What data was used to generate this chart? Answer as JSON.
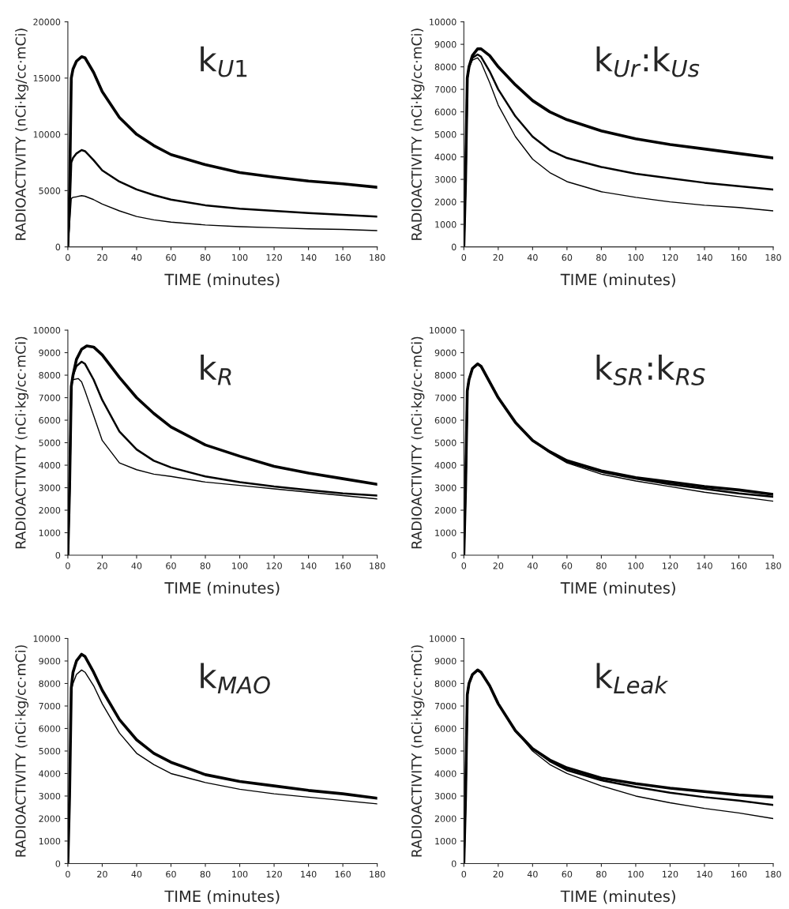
{
  "chart_data": [
    {
      "type": "line",
      "title": "k$_{U1}$",
      "xlabel": "TIME (minutes)",
      "ylabel": "RADIOACTIVITY (nCi·kg/cc·mCi)",
      "x": [
        0,
        1,
        2,
        3,
        5,
        8,
        10,
        15,
        20,
        30,
        40,
        50,
        60,
        80,
        100,
        120,
        140,
        160,
        180
      ],
      "xlim": [
        0,
        180
      ],
      "xticks": [
        0,
        20,
        40,
        60,
        80,
        100,
        120,
        140,
        160,
        180
      ],
      "ylim": [
        0,
        20000
      ],
      "yticks": [
        0,
        5000,
        10000,
        15000,
        20000
      ],
      "grid": false,
      "legend": false,
      "line_style": "solid",
      "series": [
        {
          "color": "#000000",
          "values": [
            0,
            5000,
            15000,
            15800,
            16500,
            16900,
            16800,
            15500,
            13800,
            11500,
            10000,
            9000,
            8200,
            7300,
            6600,
            6200,
            5850,
            5600,
            5300
          ]
        },
        {
          "color": "#000000",
          "values": [
            0,
            3000,
            7500,
            7900,
            8300,
            8600,
            8500,
            7700,
            6800,
            5800,
            5100,
            4600,
            4200,
            3700,
            3400,
            3200,
            3000,
            2850,
            2700
          ]
        },
        {
          "color": "#000000",
          "values": [
            0,
            2000,
            4300,
            4400,
            4450,
            4550,
            4500,
            4200,
            3800,
            3200,
            2700,
            2400,
            2200,
            1950,
            1800,
            1700,
            1600,
            1550,
            1450
          ]
        }
      ]
    },
    {
      "type": "line",
      "title": "k$_{Ur}$:k$_{Us}$",
      "xlabel": "TIME (minutes)",
      "ylabel": "RADIOACTIVITY (nCi·kg/cc·mCi)",
      "x": [
        0,
        1,
        2,
        3,
        5,
        8,
        10,
        15,
        20,
        30,
        40,
        50,
        60,
        80,
        100,
        120,
        140,
        160,
        180
      ],
      "xlim": [
        0,
        180
      ],
      "xticks": [
        0,
        20,
        40,
        60,
        80,
        100,
        120,
        140,
        160,
        180
      ],
      "ylim": [
        0,
        10000
      ],
      "yticks": [
        0,
        1000,
        2000,
        3000,
        4000,
        5000,
        6000,
        7000,
        8000,
        9000,
        10000
      ],
      "grid": false,
      "legend": false,
      "line_style": "solid",
      "series": [
        {
          "color": "#000000",
          "values": [
            0,
            3000,
            7500,
            8000,
            8500,
            8800,
            8800,
            8500,
            8000,
            7200,
            6500,
            6000,
            5650,
            5150,
            4800,
            4550,
            4350,
            4150,
            3950
          ]
        },
        {
          "color": "#000000",
          "values": [
            0,
            3000,
            7500,
            8000,
            8400,
            8550,
            8450,
            7800,
            7000,
            5800,
            4900,
            4300,
            3950,
            3550,
            3250,
            3050,
            2850,
            2700,
            2550
          ]
        },
        {
          "color": "#000000",
          "values": [
            0,
            3000,
            7500,
            8000,
            8300,
            8400,
            8200,
            7300,
            6300,
            4900,
            3900,
            3300,
            2900,
            2450,
            2200,
            2000,
            1850,
            1750,
            1600
          ]
        }
      ]
    },
    {
      "type": "line",
      "title": "k$_{R}$",
      "xlabel": "TIME (minutes)",
      "ylabel": "RADIOACTIVITY (nCi·kg/cc·mCi)",
      "x": [
        0,
        1,
        2,
        3,
        5,
        8,
        11,
        15,
        20,
        30,
        40,
        50,
        60,
        80,
        100,
        120,
        140,
        160,
        180
      ],
      "xlim": [
        0,
        180
      ],
      "xticks": [
        0,
        20,
        40,
        60,
        80,
        100,
        120,
        140,
        160,
        180
      ],
      "ylim": [
        0,
        10000
      ],
      "yticks": [
        0,
        1000,
        2000,
        3000,
        4000,
        5000,
        6000,
        7000,
        8000,
        9000,
        10000
      ],
      "grid": false,
      "legend": false,
      "line_style": "solid",
      "series": [
        {
          "color": "#000000",
          "values": [
            0,
            3000,
            7500,
            8000,
            8700,
            9150,
            9300,
            9250,
            8900,
            7900,
            7000,
            6300,
            5700,
            4900,
            4400,
            3950,
            3650,
            3400,
            3150
          ]
        },
        {
          "color": "#000000",
          "x": [
            0,
            1,
            2,
            3,
            5,
            8,
            10,
            15,
            20,
            30,
            40,
            50,
            60,
            80,
            100,
            120,
            140,
            160,
            180
          ],
          "values": [
            0,
            3000,
            7500,
            8000,
            8400,
            8600,
            8500,
            7800,
            6900,
            5500,
            4700,
            4200,
            3900,
            3500,
            3250,
            3050,
            2900,
            2750,
            2650
          ]
        },
        {
          "color": "#000000",
          "x": [
            0,
            1,
            2,
            3,
            6,
            8,
            10,
            15,
            20,
            30,
            40,
            50,
            60,
            80,
            100,
            120,
            140,
            160,
            180
          ],
          "values": [
            0,
            3000,
            7500,
            7800,
            7850,
            7700,
            7300,
            6200,
            5100,
            4100,
            3800,
            3600,
            3500,
            3250,
            3100,
            2950,
            2800,
            2650,
            2500
          ]
        }
      ]
    },
    {
      "type": "line",
      "title": "k$_{SR}$:k$_{RS}$",
      "xlabel": "TIME (minutes)",
      "ylabel": "RADIOACTIVITY (nCi·kg/cc·mCi)",
      "x": [
        0,
        1,
        2,
        3,
        5,
        8,
        10,
        15,
        20,
        30,
        40,
        50,
        60,
        80,
        100,
        120,
        140,
        160,
        180
      ],
      "xlim": [
        0,
        180
      ],
      "xticks": [
        0,
        20,
        40,
        60,
        80,
        100,
        120,
        140,
        160,
        180
      ],
      "ylim": [
        0,
        10000
      ],
      "yticks": [
        0,
        1000,
        2000,
        3000,
        4000,
        5000,
        6000,
        7000,
        8000,
        9000,
        10000
      ],
      "grid": false,
      "legend": false,
      "line_style": "solid",
      "series": [
        {
          "color": "#000000",
          "values": [
            0,
            3000,
            7300,
            7800,
            8300,
            8500,
            8400,
            7700,
            7000,
            5900,
            5100,
            4600,
            4200,
            3750,
            3450,
            3250,
            3050,
            2900,
            2700
          ]
        },
        {
          "color": "#000000",
          "values": [
            0,
            3000,
            7300,
            7800,
            8300,
            8500,
            8400,
            7700,
            7000,
            5900,
            5100,
            4600,
            4150,
            3700,
            3400,
            3150,
            2950,
            2750,
            2600
          ]
        },
        {
          "color": "#000000",
          "values": [
            0,
            3000,
            7300,
            7800,
            8300,
            8500,
            8400,
            7700,
            7000,
            5900,
            5100,
            4550,
            4100,
            3600,
            3300,
            3050,
            2800,
            2600,
            2400
          ]
        }
      ]
    },
    {
      "type": "line",
      "title": "k$_{MAO}$",
      "xlabel": "TIME (minutes)",
      "ylabel": "RADIOACTIVITY (nCi·kg/cc·mCi)",
      "x": [
        0,
        1,
        2,
        3,
        5,
        8,
        10,
        15,
        20,
        30,
        40,
        50,
        60,
        80,
        100,
        120,
        140,
        160,
        180
      ],
      "xlim": [
        0,
        180
      ],
      "xticks": [
        0,
        20,
        40,
        60,
        80,
        100,
        120,
        140,
        160,
        180
      ],
      "ylim": [
        0,
        10000
      ],
      "yticks": [
        0,
        1000,
        2000,
        3000,
        4000,
        5000,
        6000,
        7000,
        8000,
        9000,
        10000
      ],
      "grid": false,
      "legend": false,
      "line_style": "solid",
      "series": [
        {
          "color": "#000000",
          "values": [
            0,
            3000,
            7800,
            8500,
            9000,
            9300,
            9200,
            8500,
            7700,
            6400,
            5500,
            4900,
            4500,
            3950,
            3650,
            3450,
            3250,
            3100,
            2900
          ]
        },
        {
          "color": "#000000",
          "values": [
            0,
            3000,
            7700,
            8000,
            8400,
            8600,
            8500,
            7900,
            7100,
            5800,
            4900,
            4400,
            4000,
            3600,
            3300,
            3100,
            2950,
            2800,
            2650
          ]
        }
      ]
    },
    {
      "type": "line",
      "title": "k$_{Leak}$",
      "xlabel": "TIME (minutes)",
      "ylabel": "RADIOACTIVITY (nCi·kg/cc·mCi)",
      "x": [
        0,
        1,
        2,
        3,
        5,
        8,
        10,
        15,
        20,
        30,
        40,
        50,
        60,
        80,
        100,
        120,
        140,
        160,
        180
      ],
      "xlim": [
        0,
        180
      ],
      "xticks": [
        0,
        20,
        40,
        60,
        80,
        100,
        120,
        140,
        160,
        180
      ],
      "ylim": [
        0,
        10000
      ],
      "yticks": [
        0,
        1000,
        2000,
        3000,
        4000,
        5000,
        6000,
        7000,
        8000,
        9000,
        10000
      ],
      "grid": false,
      "legend": false,
      "line_style": "solid",
      "series": [
        {
          "color": "#000000",
          "values": [
            0,
            3000,
            7500,
            8000,
            8400,
            8600,
            8500,
            7900,
            7100,
            5900,
            5100,
            4600,
            4250,
            3800,
            3550,
            3350,
            3200,
            3050,
            2950
          ]
        },
        {
          "color": "#000000",
          "values": [
            0,
            3000,
            7500,
            8000,
            8400,
            8600,
            8500,
            7900,
            7100,
            5900,
            5100,
            4550,
            4150,
            3700,
            3400,
            3150,
            2950,
            2800,
            2600
          ]
        },
        {
          "color": "#000000",
          "values": [
            0,
            3000,
            7500,
            8000,
            8400,
            8600,
            8500,
            7900,
            7100,
            5900,
            5000,
            4400,
            4000,
            3450,
            3000,
            2700,
            2450,
            2250,
            2000
          ]
        }
      ]
    }
  ]
}
